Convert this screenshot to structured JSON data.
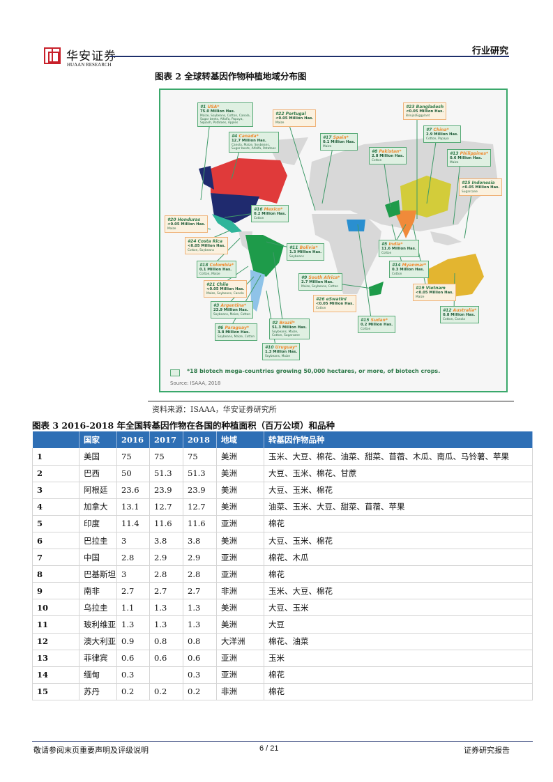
{
  "header": {
    "brand_cn": "华安证券",
    "brand_en": "HUAAN RESEARCH",
    "section": "行业研究"
  },
  "figure2": {
    "title": "图表 2 全球转基因作物种植地域分布图",
    "source": "资料来源：ISAAA，华安证券研究所",
    "map": {
      "legend": "*18 biotech mega-countries growing 50,000 hectares, or more, of biotech crops.",
      "source": "Source: ISAAA, 2018",
      "colors": {
        "usa": "#1f2a6e",
        "canada": "#e03a3a",
        "mexico": "#2fb59a",
        "brazil": "#1e9b4a",
        "argentina": "#8fc3e8",
        "china": "#d3cc3a",
        "india": "#f08a3a",
        "australia": "#e3b530",
        "sudan": "#2a8fd0",
        "land": "#d8d8d8"
      },
      "labels": [
        {
          "rank": "#1",
          "name": "USA",
          "star": "*",
          "mega": true,
          "area": "75.0 Million Has.",
          "crops": "Maize, Soybeans, Cotton, Canola,\nSugar beets, Alfalfa, Papaya,\nSquash, Potatoes, Apples"
        },
        {
          "rank": "#22",
          "name": "Portugal",
          "star": "",
          "mega": false,
          "area": "<0.05 Million Has.",
          "crops": "Maize"
        },
        {
          "rank": "#4",
          "name": "Canada",
          "star": "*",
          "mega": true,
          "area": "12.7 Million Has.",
          "crops": "Canola, Maize, Soybeans,\nSugar beets, Alfalfa, Potatoes"
        },
        {
          "rank": "#17",
          "name": "Spain",
          "star": "*",
          "mega": true,
          "area": "0.1 Million Has.",
          "crops": "Maize"
        },
        {
          "rank": "#16",
          "name": "Mexico",
          "star": "*",
          "mega": true,
          "area": "0.2 Million Has.",
          "crops": "Cotton"
        },
        {
          "rank": "#20",
          "name": "Honduras",
          "star": "",
          "mega": false,
          "area": "<0.05 Million Has.",
          "crops": "Maize"
        },
        {
          "rank": "#24",
          "name": "Costa Rica",
          "star": "",
          "mega": false,
          "area": "<0.05 Million Has.",
          "crops": "Cotton, Soybeans"
        },
        {
          "rank": "#18",
          "name": "Colombia",
          "star": "*",
          "mega": true,
          "area": "0.1 Million Has.",
          "crops": "Cotton, Maize"
        },
        {
          "rank": "#21",
          "name": "Chile",
          "star": "",
          "mega": false,
          "area": "<0.05 Million Has.",
          "crops": "Maize, Soybeans, Canola"
        },
        {
          "rank": "#3",
          "name": "Argentina",
          "star": "*",
          "mega": true,
          "area": "23.9 Million Has.",
          "crops": "Soybeans, Maize, Cotton"
        },
        {
          "rank": "#6",
          "name": "Paraguay",
          "star": "*",
          "mega": true,
          "area": "3.8 Million Has.",
          "crops": "Soybeans, Maize, Cotton"
        },
        {
          "rank": "#2",
          "name": "Brazil",
          "star": "*",
          "mega": true,
          "area": "51.3 Million Has.",
          "crops": "Soybeans, Maize,\nCotton, Sugarcane"
        },
        {
          "rank": "#10",
          "name": "Uruguay",
          "star": "*",
          "mega": true,
          "area": "1.3 Million Has.",
          "crops": "Soybeans, Maize"
        },
        {
          "rank": "#11",
          "name": "Bolivia",
          "star": "*",
          "mega": true,
          "area": "1.3 Million Has.",
          "crops": "Soybeans"
        },
        {
          "rank": "#9",
          "name": "South Africa",
          "star": "*",
          "mega": true,
          "area": "2.7 Million Has.",
          "crops": "Maize, Soybeans, Cotton"
        },
        {
          "rank": "#26",
          "name": "eSwatini",
          "star": "",
          "mega": false,
          "area": "<0.05 Million Has.",
          "crops": "Cotton"
        },
        {
          "rank": "#15",
          "name": "Sudan",
          "star": "*",
          "mega": true,
          "area": "0.2 Million Has.",
          "crops": "Cotton"
        },
        {
          "rank": "#23",
          "name": "Bangladesh",
          "star": "",
          "mega": false,
          "area": "<0.05 Million Has.",
          "crops": "Brinjal/Eggplant"
        },
        {
          "rank": "#7",
          "name": "China",
          "star": "*",
          "mega": true,
          "area": "2.9 Million Has.",
          "crops": "Cotton, Papaya"
        },
        {
          "rank": "#8",
          "name": "Pakistan",
          "star": "*",
          "mega": true,
          "area": "2.8 Million Has.",
          "crops": "Cotton"
        },
        {
          "rank": "#13",
          "name": "Philippines",
          "star": "*",
          "mega": true,
          "area": "0.6 Million Has.",
          "crops": "Maize"
        },
        {
          "rank": "#25",
          "name": "Indonesia",
          "star": "",
          "mega": false,
          "area": "<0.05 Million Has.",
          "crops": "Sugarcane"
        },
        {
          "rank": "#5",
          "name": "India",
          "star": "*",
          "mega": true,
          "area": "11.6 Million Has.",
          "crops": "Cotton"
        },
        {
          "rank": "#14",
          "name": "Myanmar",
          "star": "*",
          "mega": true,
          "area": "0.3 Million Has.",
          "crops": "Cotton"
        },
        {
          "rank": "#19",
          "name": "Vietnam",
          "star": "",
          "mega": false,
          "area": "<0.05 Million Has.",
          "crops": "Maize"
        },
        {
          "rank": "#12",
          "name": "Australia",
          "star": "*",
          "mega": true,
          "area": "0.8 Million Has.",
          "crops": "Cotton, Canola"
        }
      ]
    }
  },
  "figure3": {
    "title": "图表 3 2016-2018 年全国转基因作物在各国的种植面积（百万公顷）和品种",
    "columns": [
      "",
      "国家",
      "2016",
      "2017",
      "2018",
      "地域",
      "转基因作物品种"
    ],
    "rows": [
      [
        "1",
        "美国",
        "75",
        "75",
        "75",
        "美洲",
        "玉米、大豆、棉花、油菜、甜菜、苜蓿、木瓜、南瓜、马铃薯、苹果"
      ],
      [
        "2",
        "巴西",
        "50",
        "51.3",
        "51.3",
        "美洲",
        "大豆、玉米、棉花、甘蔗"
      ],
      [
        "3",
        "阿根廷",
        "23.6",
        "23.9",
        "23.9",
        "美洲",
        "大豆、玉米、棉花"
      ],
      [
        "4",
        "加拿大",
        "13.1",
        "12.7",
        "12.7",
        "美洲",
        "油菜、玉米、大豆、甜菜、苜蓿、苹果"
      ],
      [
        "5",
        "印度",
        "11.4",
        "11.6",
        "11.6",
        "亚洲",
        "棉花"
      ],
      [
        "6",
        "巴拉圭",
        "3",
        "3.8",
        "3.8",
        "美洲",
        "大豆、玉米、棉花"
      ],
      [
        "7",
        "中国",
        "2.8",
        "2.9",
        "2.9",
        "亚洲",
        "棉花、木瓜"
      ],
      [
        "8",
        "巴基斯坦",
        "3",
        "2.8",
        "2.8",
        "亚洲",
        "棉花"
      ],
      [
        "9",
        "南非",
        "2.7",
        "2.7",
        "2.7",
        "非洲",
        "玉米、大豆、棉花"
      ],
      [
        "10",
        "乌拉圭",
        "1.1",
        "1.3",
        "1.3",
        "美洲",
        "大豆、玉米"
      ],
      [
        "11",
        "玻利维亚",
        "1.3",
        "1.3",
        "1.3",
        "美洲",
        "大豆"
      ],
      [
        "12",
        "澳大利亚",
        "0.9",
        "0.8",
        "0.8",
        "大洋洲",
        "棉花、油菜"
      ],
      [
        "13",
        "菲律宾",
        "0.6",
        "0.6",
        "0.6",
        "亚洲",
        "玉米"
      ],
      [
        "14",
        "缅甸",
        "0.3",
        "",
        "0.3",
        "亚洲",
        "棉花"
      ],
      [
        "15",
        "苏丹",
        "0.2",
        "0.2",
        "0.2",
        "非洲",
        "棉花"
      ]
    ]
  },
  "footer": {
    "left": "敬请参阅末页重要声明及评级说明",
    "page": "6 / 21",
    "right": "证券研究报告"
  }
}
